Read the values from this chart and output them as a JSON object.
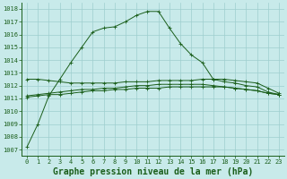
{
  "title": "Graphe pression niveau de la mer (hPa)",
  "bg_color": "#c8eaea",
  "grid_color": "#9ecece",
  "line_color": "#1a5e1a",
  "xlim": [
    -0.5,
    23.5
  ],
  "ylim": [
    1006.5,
    1018.5
  ],
  "yticks": [
    1007,
    1008,
    1009,
    1010,
    1011,
    1012,
    1013,
    1014,
    1015,
    1016,
    1017,
    1018
  ],
  "xticks": [
    0,
    1,
    2,
    3,
    4,
    5,
    6,
    7,
    8,
    9,
    10,
    11,
    12,
    13,
    14,
    15,
    16,
    17,
    18,
    19,
    20,
    21,
    22,
    23
  ],
  "series_main": [
    1007.2,
    1009.0,
    1011.2,
    1012.5,
    1013.8,
    1015.0,
    1016.2,
    1016.5,
    1016.6,
    1017.0,
    1017.5,
    1017.8,
    1017.8,
    1016.5,
    1015.3,
    1014.4,
    1013.8,
    1012.5,
    1012.3,
    1012.2,
    1012.0,
    1011.9,
    1011.5,
    1011.3
  ],
  "series_flat1": [
    1012.5,
    1012.5,
    1012.4,
    1012.3,
    1012.2,
    1012.2,
    1012.2,
    1012.2,
    1012.2,
    1012.3,
    1012.3,
    1012.3,
    1012.4,
    1012.4,
    1012.4,
    1012.4,
    1012.5,
    1012.5,
    1012.5,
    1012.4,
    1012.3,
    1012.2,
    1011.8,
    1011.4
  ],
  "series_flat2": [
    1011.1,
    1011.2,
    1011.3,
    1011.3,
    1011.4,
    1011.5,
    1011.6,
    1011.6,
    1011.7,
    1011.7,
    1011.8,
    1011.8,
    1011.8,
    1011.9,
    1011.9,
    1011.9,
    1011.9,
    1011.9,
    1011.9,
    1011.8,
    1011.7,
    1011.6,
    1011.4,
    1011.3
  ],
  "series_flat3": [
    1011.2,
    1011.3,
    1011.4,
    1011.5,
    1011.6,
    1011.7,
    1011.7,
    1011.8,
    1011.8,
    1011.9,
    1012.0,
    1012.0,
    1012.1,
    1012.1,
    1012.1,
    1012.1,
    1012.1,
    1012.0,
    1011.9,
    1011.8,
    1011.7,
    1011.6,
    1011.4,
    1011.3
  ],
  "markersize": 3,
  "linewidth": 0.7,
  "title_fontsize": 7,
  "tick_fontsize": 5
}
